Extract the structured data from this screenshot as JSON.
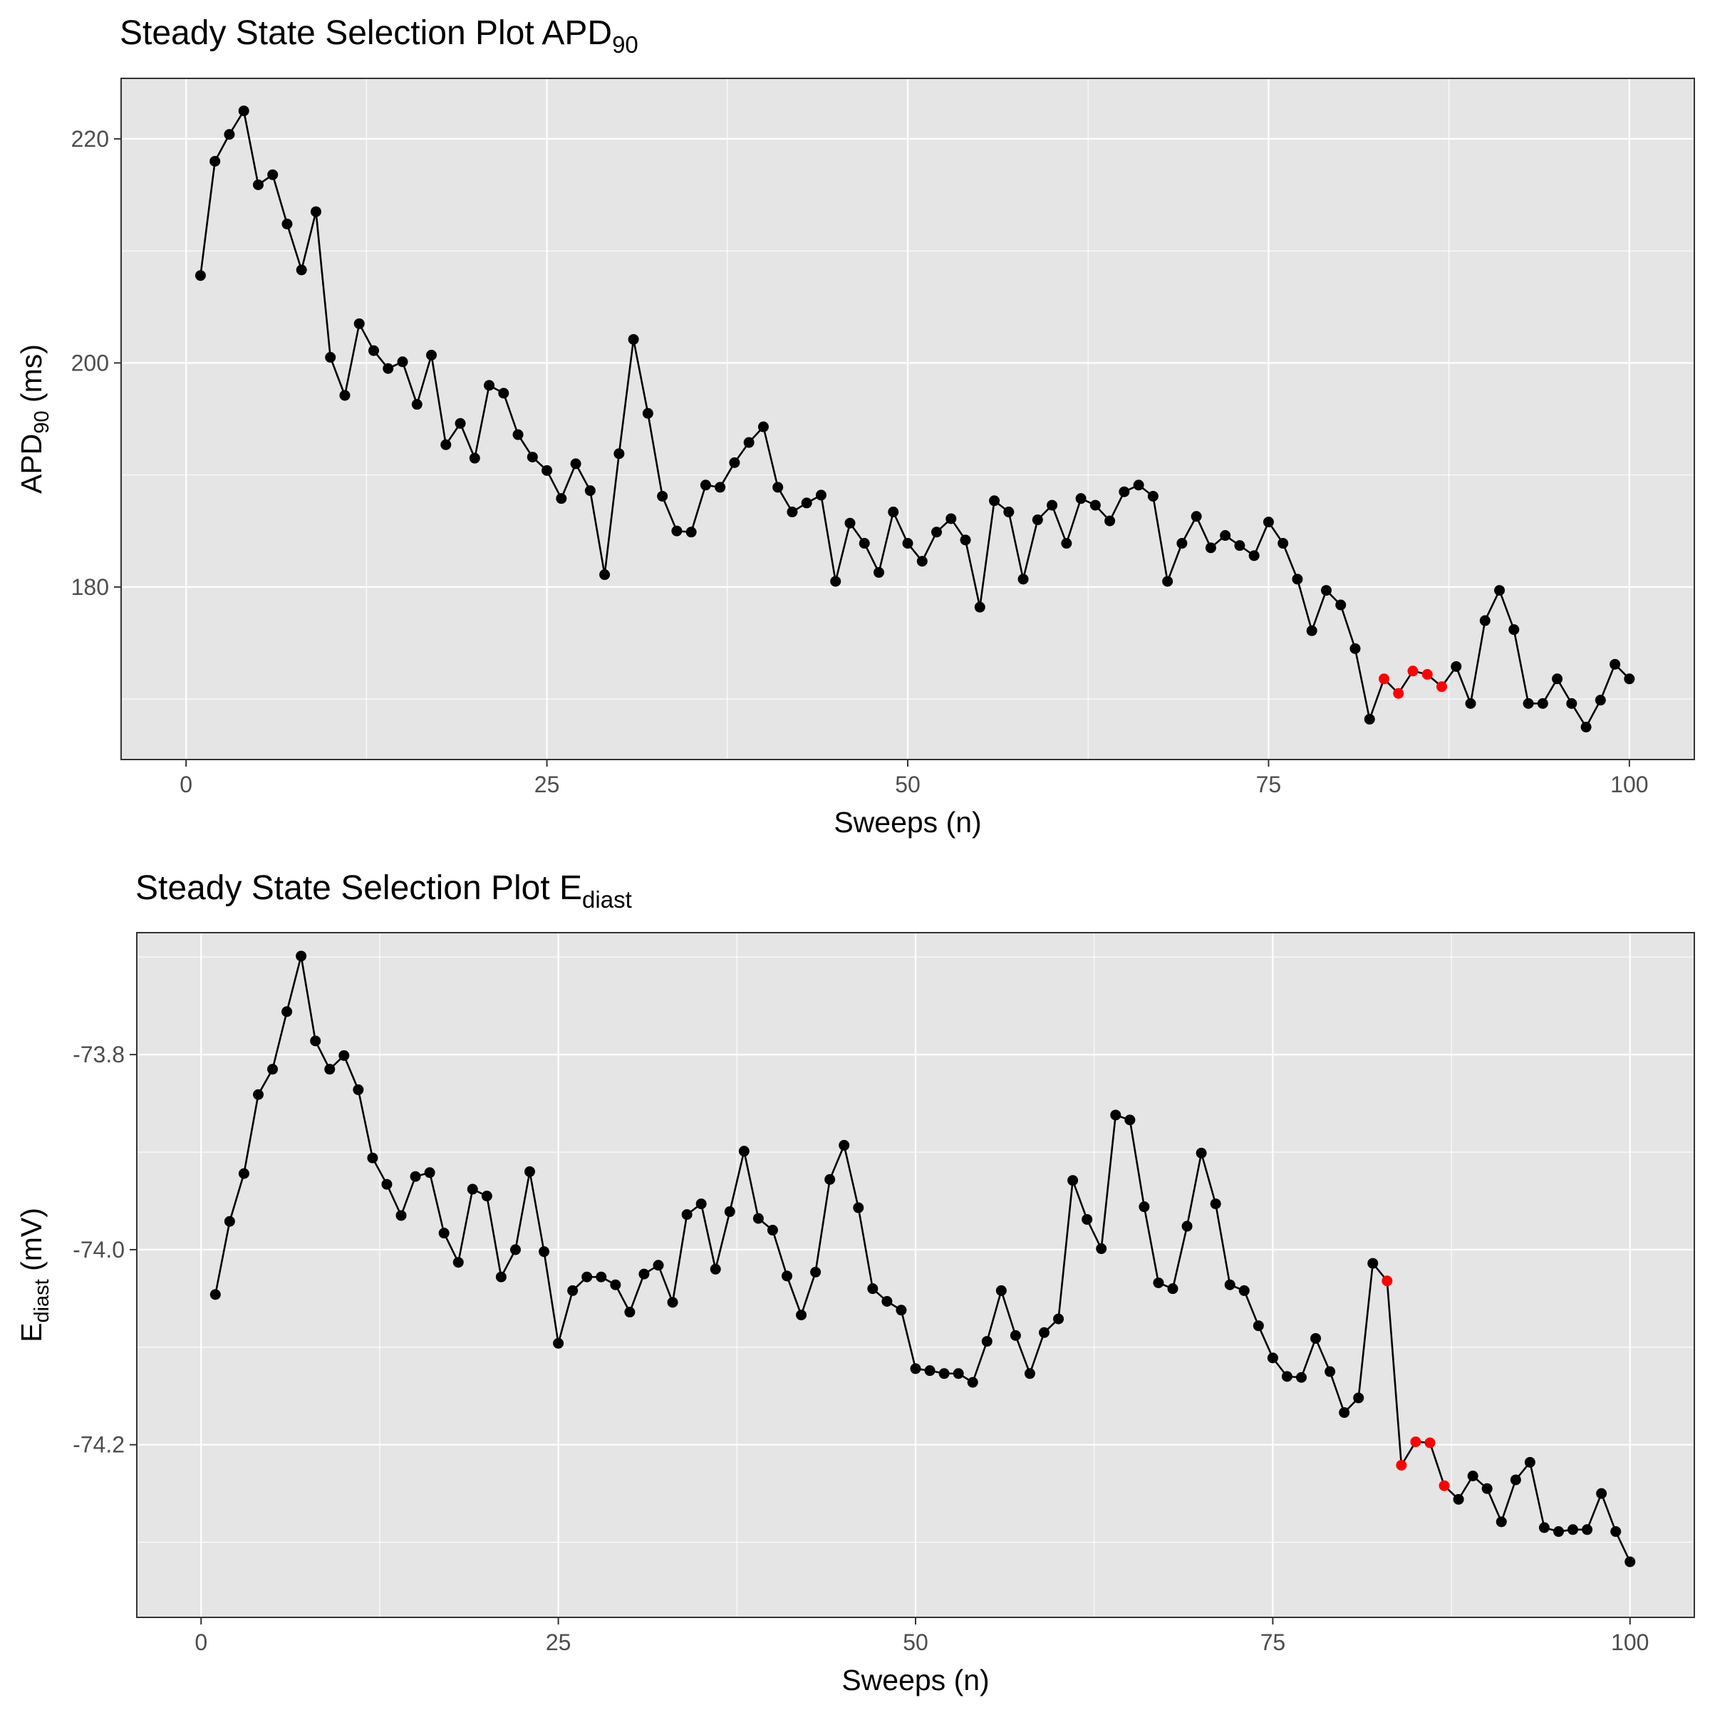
{
  "chart_data": [
    {
      "type": "line",
      "title": "Steady State Selection Plot APD",
      "title_subscript": "90",
      "xlabel": "Sweeps (n)",
      "ylabel": "APD",
      "ylabel_subscript": "90",
      "ylabel_suffix": " (ms)",
      "xlim": [
        -4.5,
        104.5
      ],
      "ylim": [
        164.6,
        225.4
      ],
      "x_ticks": [
        0,
        25,
        50,
        75,
        100
      ],
      "y_ticks": [
        180,
        200,
        220
      ],
      "y_minor_ticks": [
        170,
        190,
        210
      ],
      "grid": true,
      "point_color": "#000000",
      "highlight_color": "#ff0000",
      "highlight_x": [
        83,
        84,
        85,
        86,
        87
      ],
      "series": [
        {
          "x": [
            1,
            2,
            3,
            4,
            5,
            6,
            7,
            8,
            9,
            10,
            11,
            12,
            13,
            14,
            15,
            16,
            17,
            18,
            19,
            20,
            21,
            22,
            23,
            24,
            25,
            26,
            27,
            28,
            29,
            30,
            31,
            32,
            33,
            34,
            35,
            36,
            37,
            38,
            39,
            40,
            41,
            42,
            43,
            44,
            45,
            46,
            47,
            48,
            49,
            50,
            51,
            52,
            53,
            54,
            55,
            56,
            57,
            58,
            59,
            60,
            61,
            62,
            63,
            64,
            65,
            66,
            67,
            68,
            69,
            70,
            71,
            72,
            73,
            74,
            75,
            76,
            77,
            78,
            79,
            80,
            81,
            82,
            83,
            84,
            85,
            86,
            87,
            88,
            89,
            90,
            91,
            92,
            93,
            94,
            95,
            96,
            97,
            98,
            99,
            100
          ],
          "y": [
            207.8,
            218.0,
            220.4,
            222.5,
            215.9,
            216.8,
            212.4,
            208.3,
            213.5,
            200.5,
            197.1,
            203.5,
            201.1,
            199.5,
            200.1,
            196.3,
            200.7,
            192.7,
            194.6,
            191.5,
            198.0,
            197.3,
            193.6,
            191.6,
            190.4,
            187.9,
            191.0,
            188.6,
            181.1,
            191.9,
            202.1,
            195.5,
            188.1,
            185.0,
            184.9,
            189.1,
            188.9,
            191.1,
            192.9,
            194.3,
            188.9,
            186.7,
            187.5,
            188.2,
            180.5,
            185.7,
            183.9,
            181.3,
            186.7,
            183.9,
            182.3,
            184.9,
            186.1,
            184.2,
            178.2,
            187.7,
            186.7,
            180.7,
            186.0,
            187.3,
            183.9,
            187.9,
            187.3,
            185.9,
            188.5,
            189.1,
            188.1,
            180.5,
            183.9,
            186.3,
            183.5,
            184.6,
            183.7,
            182.8,
            185.8,
            183.9,
            180.7,
            176.1,
            179.7,
            178.4,
            174.5,
            168.2,
            171.8,
            170.5,
            172.5,
            172.2,
            171.1,
            172.9,
            169.6,
            177.0,
            179.7,
            176.2,
            169.6,
            169.6,
            171.8,
            169.6,
            167.5,
            169.9,
            173.1,
            171.8
          ]
        }
      ]
    },
    {
      "type": "line",
      "title": "Steady State Selection Plot E",
      "title_subscript": "diast",
      "xlabel": "Sweeps (n)",
      "ylabel": "E",
      "ylabel_subscript": "diast",
      "ylabel_suffix": " (mV)",
      "xlim": [
        -4.5,
        104.5
      ],
      "ylim": [
        -74.377,
        -73.675
      ],
      "x_ticks": [
        0,
        25,
        50,
        75,
        100
      ],
      "y_ticks": [
        -74.2,
        -74.0,
        -73.8
      ],
      "y_tick_labels": [
        "-74.2",
        "-74.0",
        "-73.8"
      ],
      "y_minor_ticks": [
        -74.3,
        -74.1,
        -73.9,
        -73.7
      ],
      "grid": true,
      "point_color": "#000000",
      "highlight_color": "#ff0000",
      "highlight_x": [
        83,
        84,
        85,
        86,
        87
      ],
      "series": [
        {
          "x": [
            1,
            2,
            3,
            4,
            5,
            6,
            7,
            8,
            9,
            10,
            11,
            12,
            13,
            14,
            15,
            16,
            17,
            18,
            19,
            20,
            21,
            22,
            23,
            24,
            25,
            26,
            27,
            28,
            29,
            30,
            31,
            32,
            33,
            34,
            35,
            36,
            37,
            38,
            39,
            40,
            41,
            42,
            43,
            44,
            45,
            46,
            47,
            48,
            49,
            50,
            51,
            52,
            53,
            54,
            55,
            56,
            57,
            58,
            59,
            60,
            61,
            62,
            63,
            64,
            65,
            66,
            67,
            68,
            69,
            70,
            71,
            72,
            73,
            74,
            75,
            76,
            77,
            78,
            79,
            80,
            81,
            82,
            83,
            84,
            85,
            86,
            87,
            88,
            89,
            90,
            91,
            92,
            93,
            94,
            95,
            96,
            97,
            98,
            99,
            100
          ],
          "y": [
            -74.046,
            -73.971,
            -73.922,
            -73.841,
            -73.815,
            -73.756,
            -73.699,
            -73.786,
            -73.815,
            -73.801,
            -73.836,
            -73.906,
            -73.933,
            -73.965,
            -73.925,
            -73.921,
            -73.983,
            -74.013,
            -73.938,
            -73.945,
            -74.028,
            -74.0,
            -73.92,
            -74.002,
            -74.096,
            -74.042,
            -74.028,
            -74.028,
            -74.036,
            -74.064,
            -74.025,
            -74.016,
            -74.054,
            -73.964,
            -73.953,
            -74.02,
            -73.961,
            -73.899,
            -73.968,
            -73.98,
            -74.027,
            -74.067,
            -74.023,
            -73.928,
            -73.893,
            -73.957,
            -74.04,
            -74.053,
            -74.062,
            -74.122,
            -74.124,
            -74.127,
            -74.127,
            -74.136,
            -74.094,
            -74.042,
            -74.088,
            -74.127,
            -74.085,
            -74.071,
            -73.929,
            -73.969,
            -73.999,
            -73.862,
            -73.867,
            -73.956,
            -74.034,
            -74.04,
            -73.976,
            -73.901,
            -73.953,
            -74.036,
            -74.042,
            -74.078,
            -74.111,
            -74.13,
            -74.131,
            -74.091,
            -74.125,
            -74.167,
            -74.152,
            -74.014,
            -74.032,
            -74.221,
            -74.197,
            -74.198,
            -74.242,
            -74.256,
            -74.232,
            -74.245,
            -74.279,
            -74.236,
            -74.218,
            -74.285,
            -74.289,
            -74.287,
            -74.287,
            -74.25,
            -74.289,
            -74.32
          ]
        }
      ]
    }
  ]
}
